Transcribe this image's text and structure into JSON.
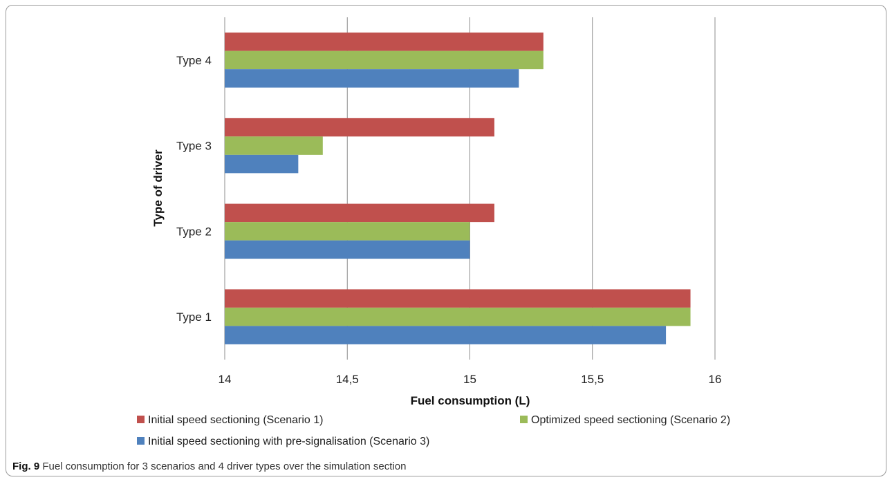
{
  "colors": {
    "series": [
      "#c0504d",
      "#9bbb59",
      "#4f81bd"
    ],
    "grid": "#8c8c8c",
    "axis": "#8c8c8c"
  },
  "caption": {
    "label": "Fig. 9",
    "text": "Fuel consumption for 3 scenarios and 4 driver types over the simulation section"
  },
  "chart_data": {
    "type": "bar",
    "orientation": "horizontal",
    "categories": [
      "Type 1",
      "Type 2",
      "Type 3",
      "Type 4"
    ],
    "series": [
      {
        "name": "Initial speed sectioning (Scenario 1)",
        "values": [
          15.9,
          15.1,
          15.1,
          15.3
        ]
      },
      {
        "name": "Optimized speed sectioning (Scenario 2)",
        "values": [
          15.9,
          15.0,
          14.4,
          15.3
        ]
      },
      {
        "name": "Initial speed sectioning with pre-signalisation (Scenario 3)",
        "values": [
          15.8,
          15.0,
          14.3,
          15.2
        ]
      }
    ],
    "xlabel": "Fuel consumption  (L)",
    "ylabel": "Type of driver",
    "xlim": [
      14,
      16
    ],
    "xticks": [
      "14",
      "14,5",
      "15",
      "15,5",
      "16"
    ],
    "xtick_values": [
      14,
      14.5,
      15,
      15.5,
      16
    ],
    "grid": "vertical",
    "legend_position": "bottom"
  }
}
